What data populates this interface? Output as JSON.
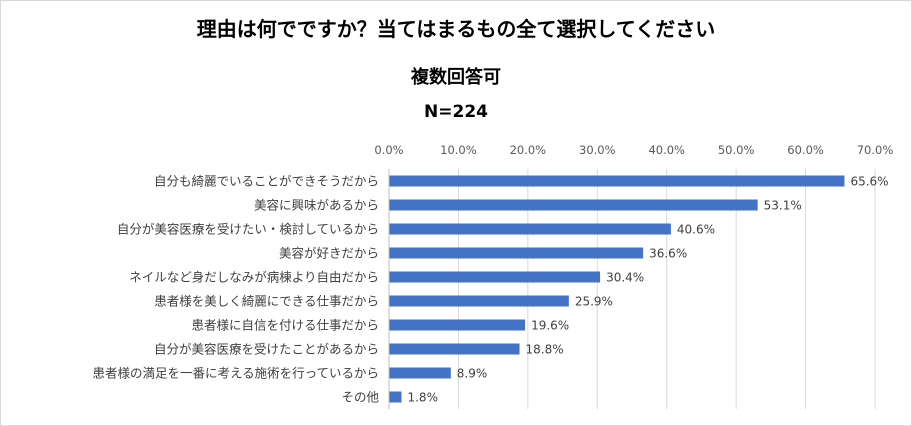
{
  "title": {
    "line1": "理由は何でですか？当てはまるもの全て選択してください",
    "line2": "複数回答可",
    "line3": "N=224"
  },
  "chart_data": {
    "type": "bar",
    "orientation": "horizontal",
    "categories": [
      "自分も綺麗でいることができそうだから",
      "美容に興味があるから",
      "自分が美容医療を受けたい・検討しているから",
      "美容が好きだから",
      "ネイルなど身だしなみが病棟より自由だから",
      "患者様を美しく綺麗にできる仕事だから",
      "患者様に自信を付ける仕事だから",
      "自分が美容医療を受けたことがあるから",
      "患者様の満足を一番に考える施術を行っているから",
      "その他"
    ],
    "values": [
      65.6,
      53.1,
      40.6,
      36.6,
      30.4,
      25.9,
      19.6,
      18.8,
      8.9,
      1.8
    ],
    "value_labels": [
      "65.6%",
      "53.1%",
      "40.6%",
      "36.6%",
      "30.4%",
      "25.9%",
      "19.6%",
      "18.8%",
      "8.9%",
      "1.8%"
    ],
    "xlim": [
      0,
      70
    ],
    "ticks": [
      0,
      10,
      20,
      30,
      40,
      50,
      60,
      70
    ],
    "tick_labels": [
      "0.0%",
      "10.0%",
      "20.0%",
      "30.0%",
      "40.0%",
      "50.0%",
      "60.0%",
      "70.0%"
    ],
    "axis_position": "top",
    "grid": true,
    "legend": false,
    "bar_color": "#4472C4",
    "grid_color": "#d9d9d9"
  }
}
